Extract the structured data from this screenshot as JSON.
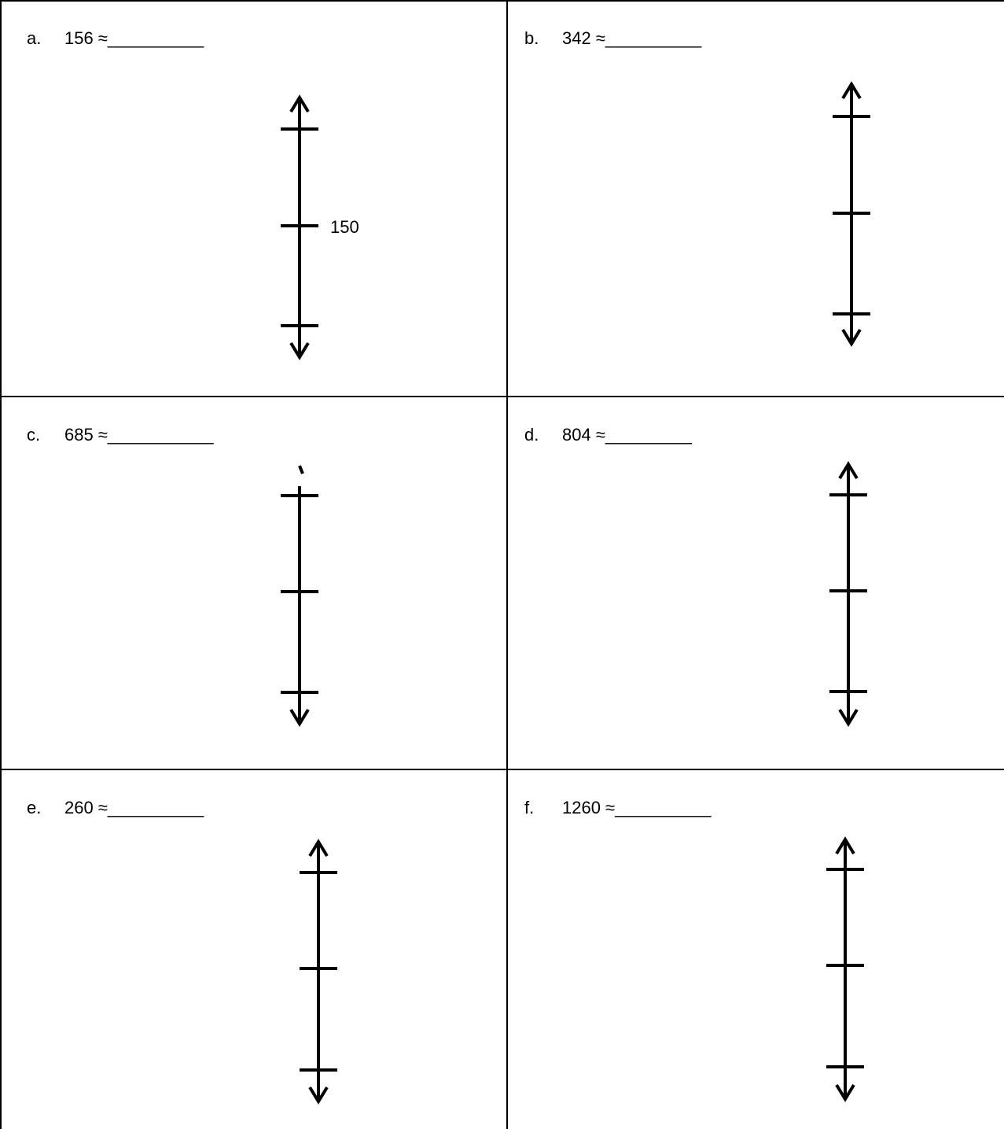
{
  "problems": [
    {
      "letter": "a.",
      "expr": "156 ≈ ",
      "blank": "__________",
      "middle_label": "150"
    },
    {
      "letter": "b.",
      "expr": "342 ≈ ",
      "blank": "__________",
      "middle_label": ""
    },
    {
      "letter": "c.",
      "expr": "685 ≈ ",
      "blank": "___________",
      "middle_label": ""
    },
    {
      "letter": "d.",
      "expr": "804 ≈ ",
      "blank": "_________",
      "middle_label": ""
    },
    {
      "letter": "e.",
      "expr": "260 ≈ ",
      "blank": "__________",
      "middle_label": ""
    },
    {
      "letter": "f.",
      "expr": "1260 ≈ ",
      "blank": "__________",
      "middle_label": ""
    }
  ]
}
